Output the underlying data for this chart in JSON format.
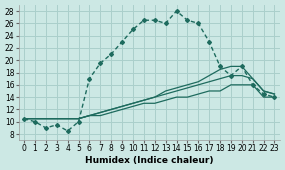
{
  "x": [
    0,
    1,
    2,
    3,
    4,
    5,
    6,
    7,
    8,
    9,
    10,
    11,
    12,
    13,
    14,
    15,
    16,
    17,
    18,
    19,
    20,
    21,
    22,
    23
  ],
  "main_curve": [
    10.5,
    10,
    9,
    9.5,
    8.5,
    10,
    17,
    19.5,
    21,
    23,
    25,
    26.5,
    26.5,
    26,
    28,
    26.5,
    26,
    23,
    19,
    17.5,
    19,
    16,
    14.5,
    14
  ],
  "line1": [
    10.5,
    10.5,
    10.5,
    10.5,
    10.5,
    10.5,
    11,
    11,
    11.5,
    12,
    12.5,
    13,
    13,
    13.5,
    14,
    14,
    14.5,
    15,
    15,
    16,
    16,
    16,
    14,
    14
  ],
  "line2": [
    10.5,
    10.5,
    10.5,
    10.5,
    10.5,
    10.5,
    11,
    11.5,
    12,
    12.5,
    13,
    13.5,
    14,
    14.5,
    15,
    15.5,
    16,
    16.5,
    17,
    17.5,
    17.5,
    17,
    15,
    14.5
  ],
  "line3": [
    10.5,
    10.5,
    10.5,
    10.5,
    10.5,
    10.5,
    11,
    11.5,
    12,
    12.5,
    13,
    13.5,
    14,
    15,
    15.5,
    16,
    16.5,
    17.5,
    18.5,
    19,
    19,
    17,
    15,
    14.5
  ],
  "bg_color": "#cce8e4",
  "grid_color": "#aacfcb",
  "line_color": "#1e6b5e",
  "xlabel": "Humidex (Indice chaleur)",
  "xlim": [
    -0.5,
    23.5
  ],
  "ylim": [
    7,
    29
  ],
  "yticks": [
    8,
    10,
    12,
    14,
    16,
    18,
    20,
    22,
    24,
    26,
    28
  ],
  "xticks": [
    0,
    1,
    2,
    3,
    4,
    5,
    6,
    7,
    8,
    9,
    10,
    11,
    12,
    13,
    14,
    15,
    16,
    17,
    18,
    19,
    20,
    21,
    22,
    23
  ],
  "xlabel_fontsize": 6.5,
  "tick_fontsize": 5.5
}
